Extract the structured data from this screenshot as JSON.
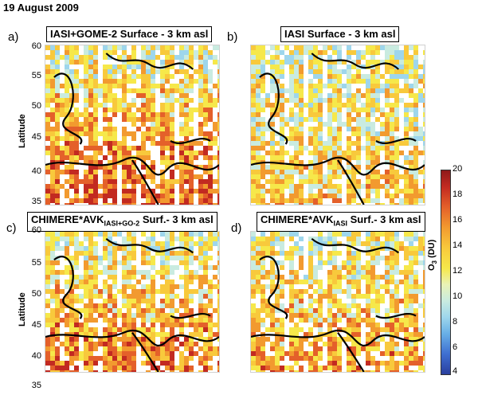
{
  "figure": {
    "date_title": "19 August 2009",
    "panels": [
      {
        "letter": "a)",
        "title": "IASI+GOME-2   Surface - 3 km asl",
        "subscript": "",
        "title_after": ""
      },
      {
        "letter": "b)",
        "title": "IASI   Surface - 3 km asl",
        "subscript": "",
        "title_after": ""
      },
      {
        "letter": "c)",
        "title": "CHIMERE*AVK",
        "subscript": "IASI+GO-2",
        "title_after": "  Surf.- 3 km asl"
      },
      {
        "letter": "d)",
        "title": "CHIMERE*AVK",
        "subscript": "IASI",
        "title_after": "  Surf.- 3 km asl"
      }
    ],
    "latitude_label": "Latitude",
    "lat_ticks": [
      "60",
      "55",
      "50",
      "45",
      "40",
      "35"
    ],
    "colorbar": {
      "label": "O3 (DU)",
      "ticks": [
        "20",
        "18",
        "16",
        "14",
        "12",
        "10",
        "8",
        "6",
        "4"
      ],
      "colors": [
        "#2a3f9e",
        "#69b0e6",
        "#c9ebe0",
        "#f6e84a",
        "#f29a2f",
        "#c22a21"
      ]
    }
  }
}
